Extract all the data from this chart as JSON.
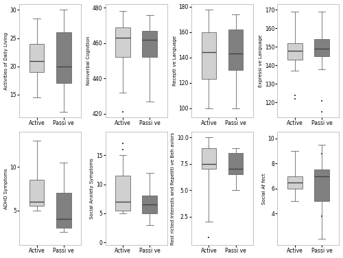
{
  "plots": [
    {
      "ylabel": "Activities of Daily Living",
      "active": {
        "whislo": 14.5,
        "q1": 19,
        "med": 21,
        "q3": 24,
        "whishi": 28.5,
        "fliers": []
      },
      "passive": {
        "whislo": 12,
        "q1": 17,
        "med": 20,
        "q3": 26,
        "whishi": 30,
        "fliers": []
      },
      "ylim": [
        11,
        31
      ],
      "yticks": [
        15,
        20,
        25,
        30
      ]
    },
    {
      "ylabel": "Nonverbal Cognition",
      "active": {
        "whislo": 432,
        "q1": 452,
        "med": 463,
        "q3": 469,
        "whishi": 478,
        "fliers": [
          421
        ]
      },
      "passive": {
        "whislo": 427,
        "q1": 452,
        "med": 462,
        "q3": 467,
        "whishi": 476,
        "fliers": []
      },
      "ylim": [
        418,
        482
      ],
      "yticks": [
        420,
        440,
        460,
        480
      ]
    },
    {
      "ylabel": "Recepti ve Language",
      "active": {
        "whislo": 100,
        "q1": 123,
        "med": 144,
        "q3": 160,
        "whishi": 178,
        "fliers": []
      },
      "passive": {
        "whislo": 100,
        "q1": 130,
        "med": 143,
        "q3": 162,
        "whishi": 174,
        "fliers": []
      },
      "ylim": [
        93,
        182
      ],
      "yticks": [
        100,
        120,
        140,
        160,
        180
      ]
    },
    {
      "ylabel": "Expressi ve Language",
      "active": {
        "whislo": 137,
        "q1": 143,
        "med": 148,
        "q3": 152,
        "whishi": 169,
        "fliers": [
          124,
          122
        ]
      },
      "passive": {
        "whislo": 138,
        "q1": 145,
        "med": 149,
        "q3": 154,
        "whishi": 169,
        "fliers": [
          121,
          115
        ]
      },
      "ylim": [
        112,
        173
      ],
      "yticks": [
        120,
        130,
        140,
        150,
        160,
        170
      ]
    },
    {
      "ylabel": "ADHD Symptoms",
      "active": {
        "whislo": 5,
        "q1": 5.5,
        "med": 6,
        "q3": 8.5,
        "whishi": 13,
        "fliers": []
      },
      "passive": {
        "whislo": 2.5,
        "q1": 3,
        "med": 4,
        "q3": 7,
        "whishi": 10.5,
        "fliers": []
      },
      "ylim": [
        1,
        14
      ],
      "yticks": [
        5,
        10
      ]
    },
    {
      "ylabel": "Social Anxiety Symptoms",
      "active": {
        "whislo": 5,
        "q1": 5.5,
        "med": 7,
        "q3": 11.5,
        "whishi": 15,
        "fliers": [
          17,
          16
        ]
      },
      "passive": {
        "whislo": 3,
        "q1": 5,
        "med": 6.5,
        "q3": 8,
        "whishi": 12,
        "fliers": []
      },
      "ylim": [
        -0.5,
        19
      ],
      "yticks": [
        0,
        5,
        10,
        15
      ]
    },
    {
      "ylabel": "Rest ricted Interests and Repetiti ve Beh aviors",
      "active": {
        "whislo": 2,
        "q1": 7,
        "med": 7.5,
        "q3": 9,
        "whishi": 10,
        "fliers": [
          0.5
        ]
      },
      "passive": {
        "whislo": 5,
        "q1": 6.5,
        "med": 7,
        "q3": 8.5,
        "whishi": 9,
        "fliers": []
      },
      "ylim": [
        -0.2,
        10.5
      ],
      "yticks": [
        2.5,
        5.0,
        7.5,
        10.0
      ]
    },
    {
      "ylabel": "Social Af fect",
      "active": {
        "whislo": 5,
        "q1": 6,
        "med": 6.5,
        "q3": 7,
        "whishi": 9,
        "fliers": []
      },
      "passive": {
        "whislo": 2,
        "q1": 5,
        "med": 7,
        "q3": 7.5,
        "whishi": 9.5,
        "fliers": [
          3.8,
          8.8
        ]
      },
      "ylim": [
        1.5,
        10.5
      ],
      "yticks": [
        4,
        6,
        8,
        10
      ]
    }
  ],
  "active_color": "#d0d0d0",
  "passive_color": "#808080",
  "background_color": "#ffffff",
  "box_edge_color": "#666666",
  "median_color": "#444444",
  "whisker_color": "#666666",
  "flier_color": "#444444",
  "xlabel_active": "Active",
  "xlabel_passive": "Passi ve"
}
